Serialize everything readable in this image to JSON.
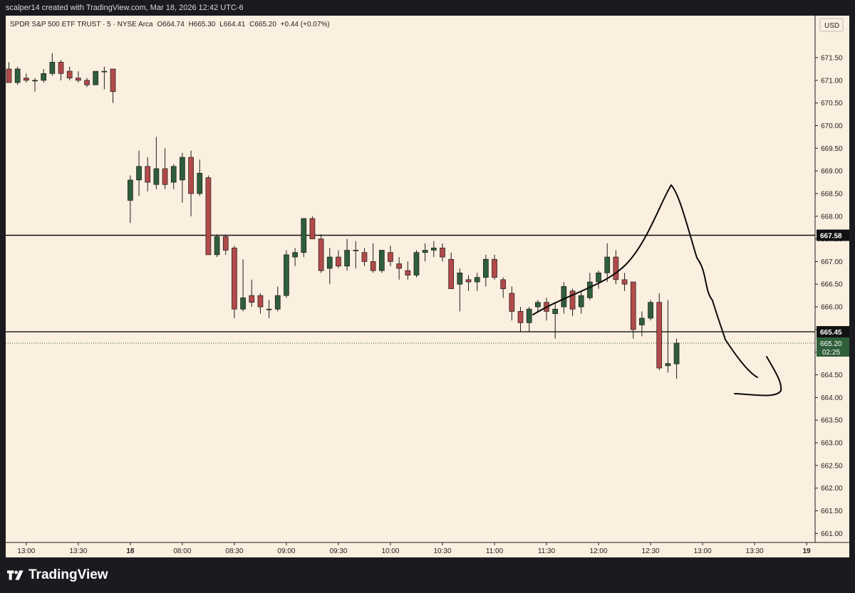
{
  "header": {
    "attribution": "scalper14 created with TradingView.com, Mar 18, 2026 12:42 UTC-6"
  },
  "legend": {
    "symbol": "SPDR S&P 500 ETF TRUST · 5 · NYSE Arca",
    "open": "O664.74",
    "high": "H665.30",
    "low": "L664.41",
    "close": "C665.20",
    "change": "+0.44 (+0.07%)"
  },
  "price_axis": {
    "currency": "USD",
    "countdown": "02:25"
  },
  "footer": {
    "brand": "TradingView"
  },
  "colors": {
    "background": "#fbefdf",
    "up": "#2f5e3a",
    "down": "#b24a4a",
    "wick": "#1d1d1d",
    "frame": "#1b1b1f"
  },
  "chart_data": {
    "type": "candlestick",
    "ylim": [
      660.8,
      672.05
    ],
    "y_ticks": [
      "661.00",
      "661.50",
      "662.00",
      "662.50",
      "663.00",
      "663.50",
      "664.00",
      "664.50",
      "665.00",
      "665.50",
      "666.00",
      "666.50",
      "667.00",
      "667.50",
      "668.00",
      "668.50",
      "669.00",
      "669.50",
      "670.00",
      "670.50",
      "671.00",
      "671.50"
    ],
    "x_ticks": [
      {
        "label": "13:00",
        "index": 2
      },
      {
        "label": "13:30",
        "index": 8
      },
      {
        "label": "18",
        "index": 14
      },
      {
        "label": "08:00",
        "index": 20
      },
      {
        "label": "08:30",
        "index": 26
      },
      {
        "label": "09:00",
        "index": 32
      },
      {
        "label": "09:30",
        "index": 38
      },
      {
        "label": "10:00",
        "index": 44
      },
      {
        "label": "10:30",
        "index": 50
      },
      {
        "label": "11:00",
        "index": 56
      },
      {
        "label": "11:30",
        "index": 62
      },
      {
        "label": "12:00",
        "index": 68
      },
      {
        "label": "12:30",
        "index": 74
      },
      {
        "label": "13:00",
        "index": 80
      },
      {
        "label": "13:30",
        "index": 86
      },
      {
        "label": "19",
        "index": 92
      }
    ],
    "horizontal_lines": [
      {
        "price": 667.58,
        "label": "667.58"
      },
      {
        "price": 665.45,
        "label": "665.45"
      }
    ],
    "last_price": {
      "price": 665.2,
      "label": "665.20"
    },
    "candles": [
      {
        "i": 0,
        "o": 671.25,
        "h": 671.4,
        "l": 670.95,
        "c": 670.95
      },
      {
        "i": 1,
        "o": 670.95,
        "h": 671.3,
        "l": 670.9,
        "c": 671.25
      },
      {
        "i": 2,
        "o": 671.05,
        "h": 671.15,
        "l": 670.95,
        "c": 671.0
      },
      {
        "i": 3,
        "o": 671.0,
        "h": 671.05,
        "l": 670.75,
        "c": 671.0
      },
      {
        "i": 4,
        "o": 671.0,
        "h": 671.25,
        "l": 670.95,
        "c": 671.15
      },
      {
        "i": 5,
        "o": 671.15,
        "h": 671.6,
        "l": 671.1,
        "c": 671.4
      },
      {
        "i": 6,
        "o": 671.4,
        "h": 671.45,
        "l": 671.0,
        "c": 671.15
      },
      {
        "i": 7,
        "o": 671.2,
        "h": 671.3,
        "l": 671.0,
        "c": 671.05
      },
      {
        "i": 8,
        "o": 671.05,
        "h": 671.2,
        "l": 670.95,
        "c": 671.0
      },
      {
        "i": 9,
        "o": 671.0,
        "h": 671.05,
        "l": 670.85,
        "c": 670.9
      },
      {
        "i": 10,
        "o": 670.9,
        "h": 671.2,
        "l": 670.9,
        "c": 671.2
      },
      {
        "i": 11,
        "o": 671.2,
        "h": 671.3,
        "l": 670.8,
        "c": 671.2
      },
      {
        "i": 12,
        "o": 671.25,
        "h": 671.25,
        "l": 670.5,
        "c": 670.75
      },
      {
        "i": 14,
        "o": 668.35,
        "h": 668.9,
        "l": 667.85,
        "c": 668.8
      },
      {
        "i": 15,
        "o": 668.8,
        "h": 669.45,
        "l": 668.45,
        "c": 669.1
      },
      {
        "i": 16,
        "o": 669.1,
        "h": 669.3,
        "l": 668.55,
        "c": 668.75
      },
      {
        "i": 17,
        "o": 668.7,
        "h": 669.75,
        "l": 668.6,
        "c": 669.05
      },
      {
        "i": 18,
        "o": 669.05,
        "h": 669.5,
        "l": 668.6,
        "c": 668.7
      },
      {
        "i": 19,
        "o": 668.75,
        "h": 669.15,
        "l": 668.6,
        "c": 669.1
      },
      {
        "i": 20,
        "o": 668.8,
        "h": 669.4,
        "l": 668.3,
        "c": 669.3
      },
      {
        "i": 21,
        "o": 669.3,
        "h": 669.45,
        "l": 668.0,
        "c": 668.5
      },
      {
        "i": 22,
        "o": 668.5,
        "h": 669.25,
        "l": 668.45,
        "c": 668.95
      },
      {
        "i": 23,
        "o": 668.85,
        "h": 668.9,
        "l": 667.15,
        "c": 667.15
      },
      {
        "i": 24,
        "o": 667.15,
        "h": 667.6,
        "l": 667.1,
        "c": 667.55
      },
      {
        "i": 25,
        "o": 667.55,
        "h": 667.6,
        "l": 667.15,
        "c": 667.25
      },
      {
        "i": 26,
        "o": 667.3,
        "h": 667.35,
        "l": 665.75,
        "c": 665.95
      },
      {
        "i": 27,
        "o": 665.95,
        "h": 667.05,
        "l": 665.9,
        "c": 666.2
      },
      {
        "i": 28,
        "o": 666.25,
        "h": 666.6,
        "l": 666.0,
        "c": 666.1
      },
      {
        "i": 29,
        "o": 666.25,
        "h": 666.3,
        "l": 665.85,
        "c": 666.0
      },
      {
        "i": 30,
        "o": 665.95,
        "h": 666.15,
        "l": 665.75,
        "c": 665.95
      },
      {
        "i": 31,
        "o": 665.95,
        "h": 666.45,
        "l": 665.9,
        "c": 666.25
      },
      {
        "i": 32,
        "o": 666.25,
        "h": 667.25,
        "l": 666.2,
        "c": 667.15
      },
      {
        "i": 33,
        "o": 667.1,
        "h": 667.3,
        "l": 666.9,
        "c": 667.2
      },
      {
        "i": 34,
        "o": 667.2,
        "h": 667.95,
        "l": 667.1,
        "c": 667.95
      },
      {
        "i": 35,
        "o": 667.95,
        "h": 668.0,
        "l": 667.5,
        "c": 667.5
      },
      {
        "i": 36,
        "o": 667.5,
        "h": 667.6,
        "l": 666.75,
        "c": 666.8
      },
      {
        "i": 37,
        "o": 666.85,
        "h": 667.3,
        "l": 666.5,
        "c": 667.1
      },
      {
        "i": 38,
        "o": 667.1,
        "h": 667.25,
        "l": 666.85,
        "c": 666.9
      },
      {
        "i": 39,
        "o": 666.9,
        "h": 667.5,
        "l": 666.8,
        "c": 667.25
      },
      {
        "i": 40,
        "o": 667.25,
        "h": 667.45,
        "l": 666.85,
        "c": 667.25
      },
      {
        "i": 41,
        "o": 667.2,
        "h": 667.3,
        "l": 666.9,
        "c": 667.0
      },
      {
        "i": 42,
        "o": 667.0,
        "h": 667.4,
        "l": 666.75,
        "c": 666.8
      },
      {
        "i": 43,
        "o": 666.8,
        "h": 667.25,
        "l": 666.75,
        "c": 667.25
      },
      {
        "i": 44,
        "o": 667.2,
        "h": 667.35,
        "l": 666.9,
        "c": 667.0
      },
      {
        "i": 45,
        "o": 666.95,
        "h": 667.1,
        "l": 666.6,
        "c": 666.85
      },
      {
        "i": 46,
        "o": 666.8,
        "h": 667.0,
        "l": 666.6,
        "c": 666.7
      },
      {
        "i": 47,
        "o": 666.7,
        "h": 667.25,
        "l": 666.65,
        "c": 667.2
      },
      {
        "i": 48,
        "o": 667.2,
        "h": 667.4,
        "l": 667.0,
        "c": 667.25
      },
      {
        "i": 49,
        "o": 667.25,
        "h": 667.45,
        "l": 667.1,
        "c": 667.3
      },
      {
        "i": 50,
        "o": 667.3,
        "h": 667.4,
        "l": 667.0,
        "c": 667.1
      },
      {
        "i": 51,
        "o": 667.05,
        "h": 667.2,
        "l": 666.4,
        "c": 666.4
      },
      {
        "i": 52,
        "o": 666.5,
        "h": 666.85,
        "l": 665.9,
        "c": 666.75
      },
      {
        "i": 53,
        "o": 666.6,
        "h": 666.7,
        "l": 666.35,
        "c": 666.55
      },
      {
        "i": 54,
        "o": 666.55,
        "h": 666.75,
        "l": 666.35,
        "c": 666.65
      },
      {
        "i": 55,
        "o": 666.65,
        "h": 667.15,
        "l": 666.45,
        "c": 667.05
      },
      {
        "i": 56,
        "o": 667.05,
        "h": 667.15,
        "l": 666.6,
        "c": 666.65
      },
      {
        "i": 57,
        "o": 666.6,
        "h": 666.65,
        "l": 666.2,
        "c": 666.4
      },
      {
        "i": 58,
        "o": 666.3,
        "h": 666.45,
        "l": 665.7,
        "c": 665.9
      },
      {
        "i": 59,
        "o": 665.9,
        "h": 666.0,
        "l": 665.45,
        "c": 665.65
      },
      {
        "i": 60,
        "o": 665.65,
        "h": 666.0,
        "l": 665.45,
        "c": 665.95
      },
      {
        "i": 61,
        "o": 666.0,
        "h": 666.15,
        "l": 665.9,
        "c": 666.1
      },
      {
        "i": 62,
        "o": 666.1,
        "h": 666.2,
        "l": 665.7,
        "c": 665.9
      },
      {
        "i": 63,
        "o": 665.85,
        "h": 666.1,
        "l": 665.3,
        "c": 665.95
      },
      {
        "i": 64,
        "o": 666.0,
        "h": 666.55,
        "l": 665.85,
        "c": 666.45
      },
      {
        "i": 65,
        "o": 666.35,
        "h": 666.4,
        "l": 665.8,
        "c": 665.95
      },
      {
        "i": 66,
        "o": 666.0,
        "h": 666.35,
        "l": 665.85,
        "c": 666.25
      },
      {
        "i": 67,
        "o": 666.2,
        "h": 666.75,
        "l": 666.15,
        "c": 666.55
      },
      {
        "i": 68,
        "o": 666.55,
        "h": 666.8,
        "l": 666.4,
        "c": 666.75
      },
      {
        "i": 69,
        "o": 666.75,
        "h": 667.4,
        "l": 666.55,
        "c": 667.1
      },
      {
        "i": 70,
        "o": 667.1,
        "h": 667.25,
        "l": 666.5,
        "c": 666.6
      },
      {
        "i": 71,
        "o": 666.6,
        "h": 666.75,
        "l": 666.35,
        "c": 666.5
      },
      {
        "i": 72,
        "o": 666.55,
        "h": 666.55,
        "l": 665.3,
        "c": 665.5
      },
      {
        "i": 73,
        "o": 665.6,
        "h": 665.9,
        "l": 665.35,
        "c": 665.75
      },
      {
        "i": 74,
        "o": 665.75,
        "h": 666.15,
        "l": 665.7,
        "c": 666.1
      },
      {
        "i": 75,
        "o": 666.1,
        "h": 666.3,
        "l": 664.6,
        "c": 664.65
      },
      {
        "i": 76,
        "o": 664.7,
        "h": 666.15,
        "l": 664.55,
        "c": 664.75
      },
      {
        "i": 77,
        "o": 664.74,
        "h": 665.3,
        "l": 664.41,
        "c": 665.2
      }
    ]
  }
}
